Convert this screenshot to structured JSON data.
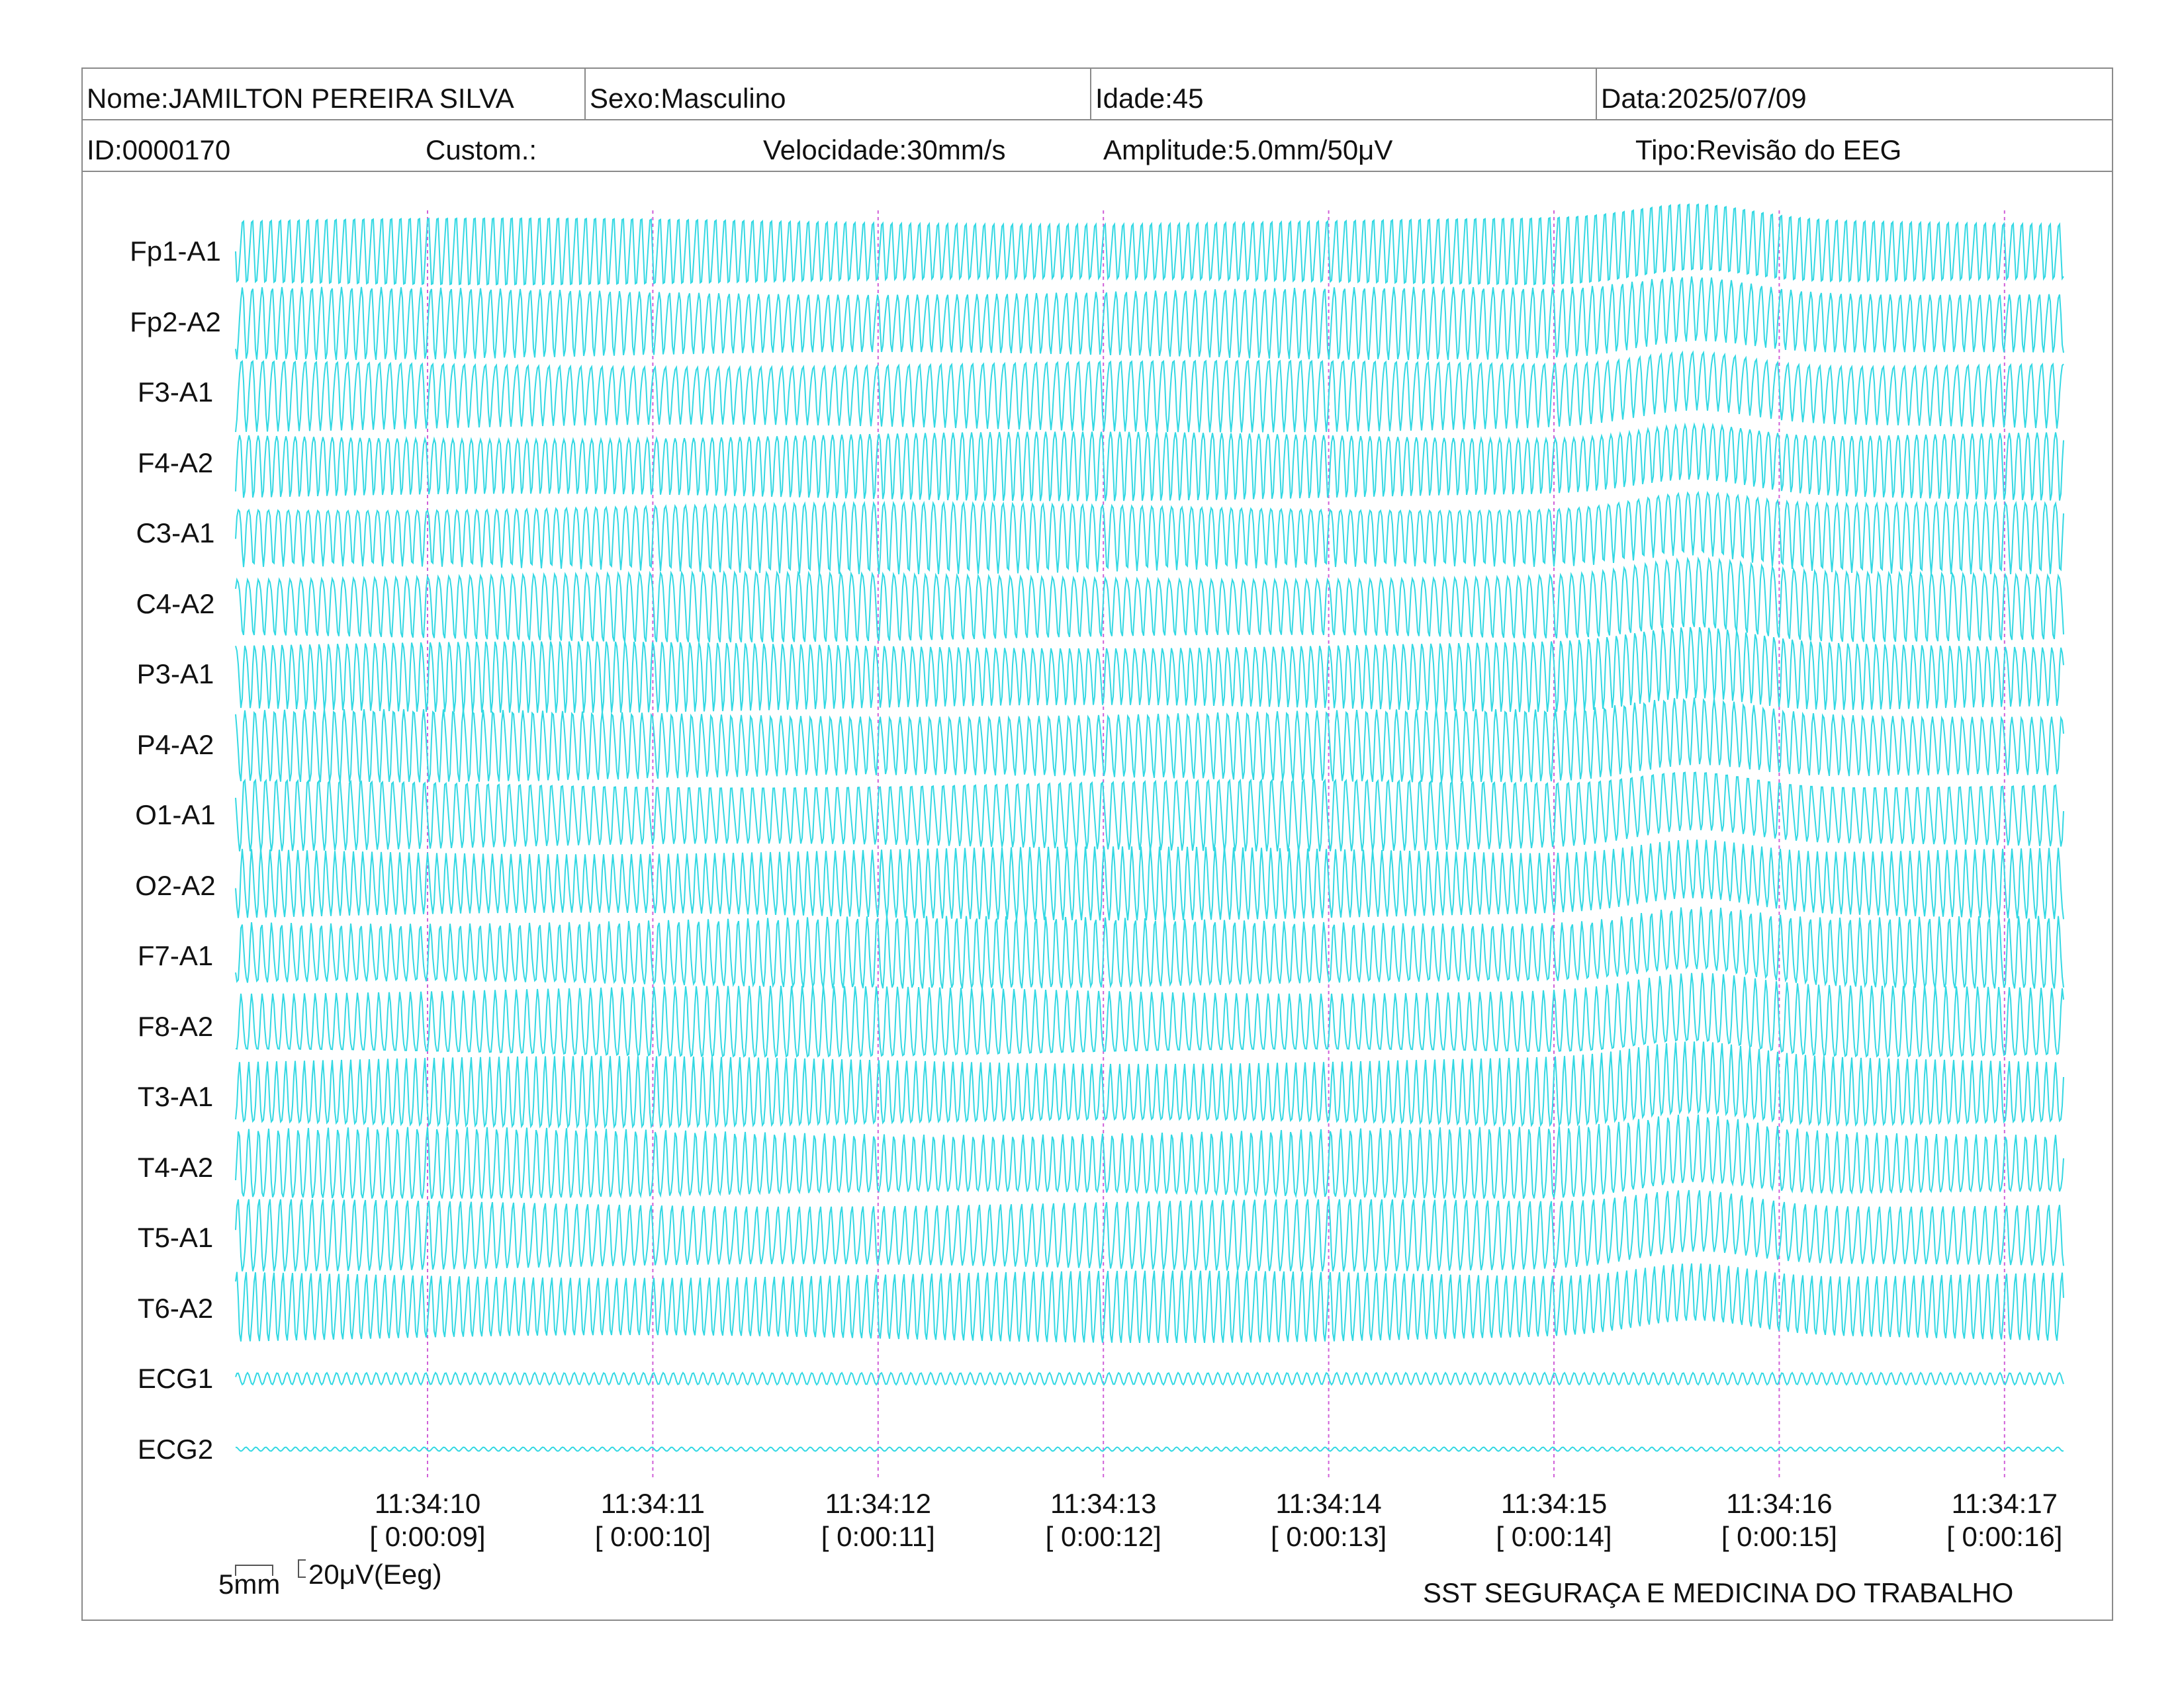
{
  "header": {
    "nome": "Nome:JAMILTON PEREIRA SILVA",
    "sexo": "Sexo:Masculino",
    "idade": "Idade:45",
    "data": "Data:2025/07/09",
    "id": "ID:0000170",
    "custom": "Custom.:",
    "velocidade": "Velocidade:30mm/s",
    "amplitude": "Amplitude:5.0mm/50μV",
    "tipo": "Tipo:Revisão do EEG"
  },
  "channels": [
    "Fp1-A1",
    "Fp2-A2",
    "F3-A1",
    "F4-A2",
    "C3-A1",
    "C4-A2",
    "P3-A1",
    "P4-A2",
    "O1-A1",
    "O2-A2",
    "F7-A1",
    "F8-A2",
    "T3-A1",
    "T4-A2",
    "T5-A1",
    "T6-A2",
    "ECG1",
    "ECG2"
  ],
  "time_marks": [
    {
      "clock": "11:34:10",
      "elapsed": "[ 0:00:09]"
    },
    {
      "clock": "11:34:11",
      "elapsed": "[ 0:00:10]"
    },
    {
      "clock": "11:34:12",
      "elapsed": "[ 0:00:11]"
    },
    {
      "clock": "11:34:13",
      "elapsed": "[ 0:00:12]"
    },
    {
      "clock": "11:34:14",
      "elapsed": "[ 0:00:13]"
    },
    {
      "clock": "11:34:15",
      "elapsed": "[ 0:00:14]"
    },
    {
      "clock": "11:34:16",
      "elapsed": "[ 0:00:15]"
    },
    {
      "clock": "11:34:17",
      "elapsed": "[ 0:00:16]"
    }
  ],
  "scale": {
    "horizontal": "5mm",
    "vertical": "20μV(Eeg)"
  },
  "footer": {
    "company": "SST SEGURAÇA E MEDICINA DO TRABALHO"
  },
  "colors": {
    "trace": "#33d8e3",
    "time_marker": "#d060d8",
    "border": "#8a8a8a",
    "text": "#111111"
  }
}
